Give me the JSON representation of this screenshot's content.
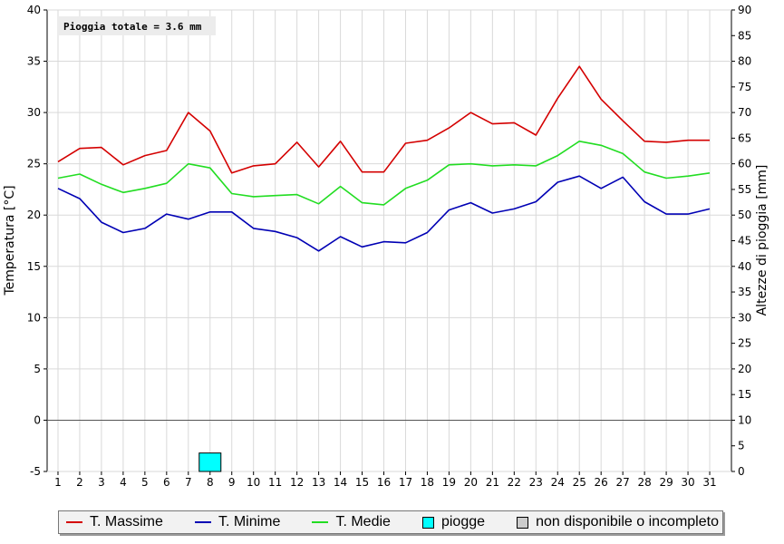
{
  "chart_data": {
    "type": "line",
    "annotation": "Pioggia totale = 3.6 mm",
    "ylabel": "Temperatura [°C]",
    "y2label": "Altezze di pioggia [mm]",
    "ylim": [
      -5,
      40
    ],
    "y2lim": [
      0,
      90
    ],
    "yticks": [
      "-5",
      "0",
      "5",
      "10",
      "15",
      "20",
      "25",
      "30",
      "35",
      "40"
    ],
    "y2ticks": [
      "0",
      "5",
      "10",
      "15",
      "20",
      "25",
      "30",
      "35",
      "40",
      "45",
      "50",
      "55",
      "60",
      "65",
      "70",
      "75",
      "80",
      "85",
      "90"
    ],
    "categories": [
      "1",
      "2",
      "3",
      "4",
      "5",
      "6",
      "7",
      "8",
      "9",
      "10",
      "11",
      "12",
      "13",
      "14",
      "15",
      "16",
      "17",
      "18",
      "19",
      "20",
      "21",
      "22",
      "23",
      "24",
      "25",
      "26",
      "27",
      "28",
      "29",
      "30",
      "31"
    ],
    "grid": true,
    "legend_position": "bottom",
    "series": [
      {
        "name": "T. Massime",
        "color": "#d40000",
        "values": [
          25.2,
          26.5,
          26.6,
          24.9,
          25.8,
          26.3,
          30.0,
          28.2,
          24.1,
          24.8,
          25.0,
          27.1,
          24.7,
          27.2,
          24.2,
          24.2,
          27.0,
          27.3,
          28.5,
          30.0,
          28.9,
          29.0,
          27.8,
          31.4,
          34.5,
          31.3,
          29.2,
          27.2,
          27.1,
          27.3,
          27.3
        ]
      },
      {
        "name": "T. Minime",
        "color": "#0000b4",
        "values": [
          22.6,
          21.6,
          19.3,
          18.3,
          18.7,
          20.1,
          19.6,
          20.3,
          20.3,
          18.7,
          18.4,
          17.8,
          16.5,
          17.9,
          16.9,
          17.4,
          17.3,
          18.3,
          20.5,
          21.2,
          20.2,
          20.6,
          21.3,
          23.2,
          23.8,
          22.6,
          23.7,
          21.3,
          20.1,
          20.1,
          20.6
        ]
      },
      {
        "name": "T. Medie",
        "color": "#22dd22",
        "values": [
          23.6,
          24.0,
          23.0,
          22.2,
          22.6,
          23.1,
          25.0,
          24.6,
          22.1,
          21.8,
          21.9,
          22.0,
          21.1,
          22.8,
          21.2,
          21.0,
          22.6,
          23.4,
          24.9,
          25.0,
          24.8,
          24.9,
          24.8,
          25.8,
          27.2,
          26.8,
          26.0,
          24.2,
          23.6,
          23.8,
          24.1
        ]
      }
    ],
    "rain": {
      "name": "piogge",
      "color": "#00ffff",
      "values": [
        0,
        0,
        0,
        0,
        0,
        0,
        0,
        3.6,
        0,
        0,
        0,
        0,
        0,
        0,
        0,
        0,
        0,
        0,
        0,
        0,
        0,
        0,
        0,
        0,
        0,
        0,
        0,
        0,
        0,
        0,
        0
      ]
    },
    "legend_extra": {
      "name": "non disponibile o incompleto",
      "color": "#cccccc"
    }
  }
}
